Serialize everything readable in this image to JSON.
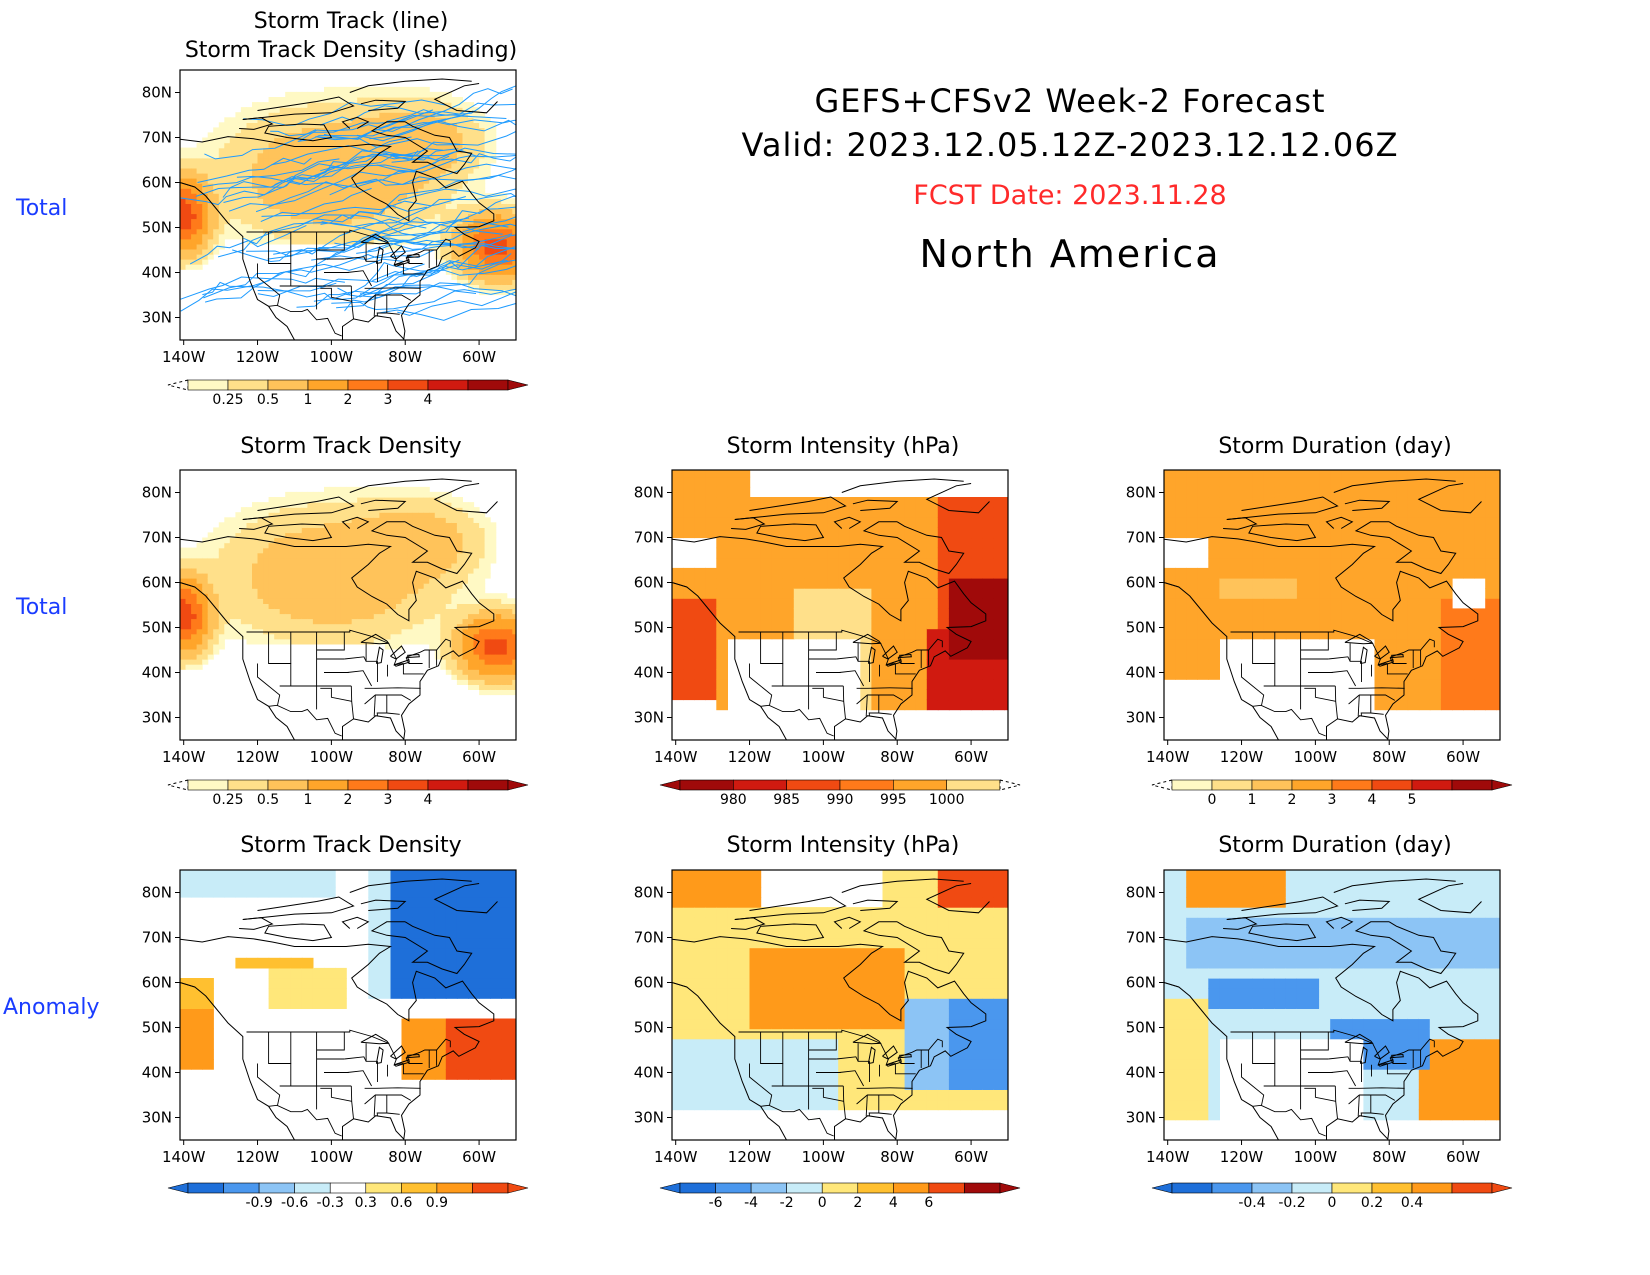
{
  "header": {
    "title_line1": "GEFS+CFSv2 Week-2 Forecast",
    "title_line2": "Valid: 2023.12.05.12Z-2023.12.12.06Z",
    "fcst_date": "FCST Date: 2023.11.28",
    "region": "North America"
  },
  "row_labels": [
    "Total",
    "Total",
    "Anomaly"
  ],
  "lat_labels": [
    "80N",
    "70N",
    "60N",
    "50N",
    "40N",
    "30N"
  ],
  "lon_labels": [
    "140W",
    "120W",
    "100W",
    "80W",
    "60W"
  ],
  "colors": {
    "row_label": "#1a3cff",
    "fcst_date": "#ff2a2a",
    "track_line": "#1e9bff",
    "map_outline": "#000000"
  },
  "panels": [
    {
      "id": "p1",
      "title_lines": [
        "Storm Track (line)",
        "Storm Track Density (shading)"
      ],
      "field": "density",
      "tracks": true,
      "colorbar": {
        "labels": [
          "0.25",
          "0.5",
          "1",
          "2",
          "3",
          "4"
        ],
        "colors": [
          "#fff9c4",
          "#ffe08a",
          "#ffc35a",
          "#ffa52a",
          "#ff7a1a",
          "#f04a12",
          "#d01a10",
          "#a00a0a"
        ],
        "dashed_left": true,
        "dashed_right": false
      }
    },
    {
      "id": "p2",
      "title_lines": [
        "Storm Track Density"
      ],
      "field": "density",
      "tracks": false,
      "colorbar": {
        "labels": [
          "0.25",
          "0.5",
          "1",
          "2",
          "3",
          "4"
        ],
        "colors": [
          "#fff9c4",
          "#ffe08a",
          "#ffc35a",
          "#ffa52a",
          "#ff7a1a",
          "#f04a12",
          "#d01a10",
          "#a00a0a"
        ],
        "dashed_left": true,
        "dashed_right": false
      }
    },
    {
      "id": "p3",
      "title_lines": [
        "Storm Intensity (hPa)"
      ],
      "field": "intensity",
      "tracks": false,
      "colorbar": {
        "labels": [
          "980",
          "985",
          "990",
          "995",
          "1000"
        ],
        "colors": [
          "#a00a0a",
          "#d01a10",
          "#f04a12",
          "#ff7a1a",
          "#ffa52a",
          "#ffe08a"
        ],
        "dashed_left": false,
        "dashed_right": true
      }
    },
    {
      "id": "p4",
      "title_lines": [
        "Storm Duration (day)"
      ],
      "field": "duration",
      "tracks": false,
      "colorbar": {
        "labels": [
          "0",
          "1",
          "2",
          "3",
          "4",
          "5"
        ],
        "colors": [
          "#fff9c4",
          "#ffe08a",
          "#ffc35a",
          "#ffa52a",
          "#ff7a1a",
          "#f04a12",
          "#d01a10",
          "#a00a0a"
        ],
        "dashed_left": true,
        "dashed_right": false
      }
    },
    {
      "id": "p5",
      "title_lines": [
        "Storm Track Density"
      ],
      "field": "anom_density",
      "tracks": false,
      "colorbar": {
        "labels": [
          "-0.9",
          "-0.6",
          "-0.3",
          "0.3",
          "0.6",
          "0.9"
        ],
        "colors": [
          "#1e6fd9",
          "#4a97ee",
          "#8cc4f5",
          "#c8ecf8",
          "#ffffff",
          "#ffe77a",
          "#ffc030",
          "#ff9a1a",
          "#f04a12"
        ],
        "dashed_left": false,
        "dashed_right": false
      }
    },
    {
      "id": "p6",
      "title_lines": [
        "Storm Intensity (hPa)"
      ],
      "field": "anom_intensity",
      "tracks": false,
      "colorbar": {
        "labels": [
          "-6",
          "-4",
          "-2",
          "0",
          "2",
          "4",
          "6"
        ],
        "colors": [
          "#1e6fd9",
          "#4a97ee",
          "#8cc4f5",
          "#c8ecf8",
          "#ffe77a",
          "#ffc030",
          "#ff9a1a",
          "#f04a12",
          "#a00a0a"
        ],
        "dashed_left": false,
        "dashed_right": false
      }
    },
    {
      "id": "p7",
      "title_lines": [
        "Storm Duration (day)"
      ],
      "field": "anom_duration",
      "tracks": false,
      "colorbar": {
        "labels": [
          "-0.4",
          "-0.2",
          "0",
          "0.2",
          "0.4"
        ],
        "colors": [
          "#1e6fd9",
          "#4a97ee",
          "#8cc4f5",
          "#c8ecf8",
          "#ffe77a",
          "#ffc030",
          "#ff9a1a",
          "#f04a12"
        ],
        "dashed_left": false,
        "dashed_right": false
      }
    }
  ]
}
